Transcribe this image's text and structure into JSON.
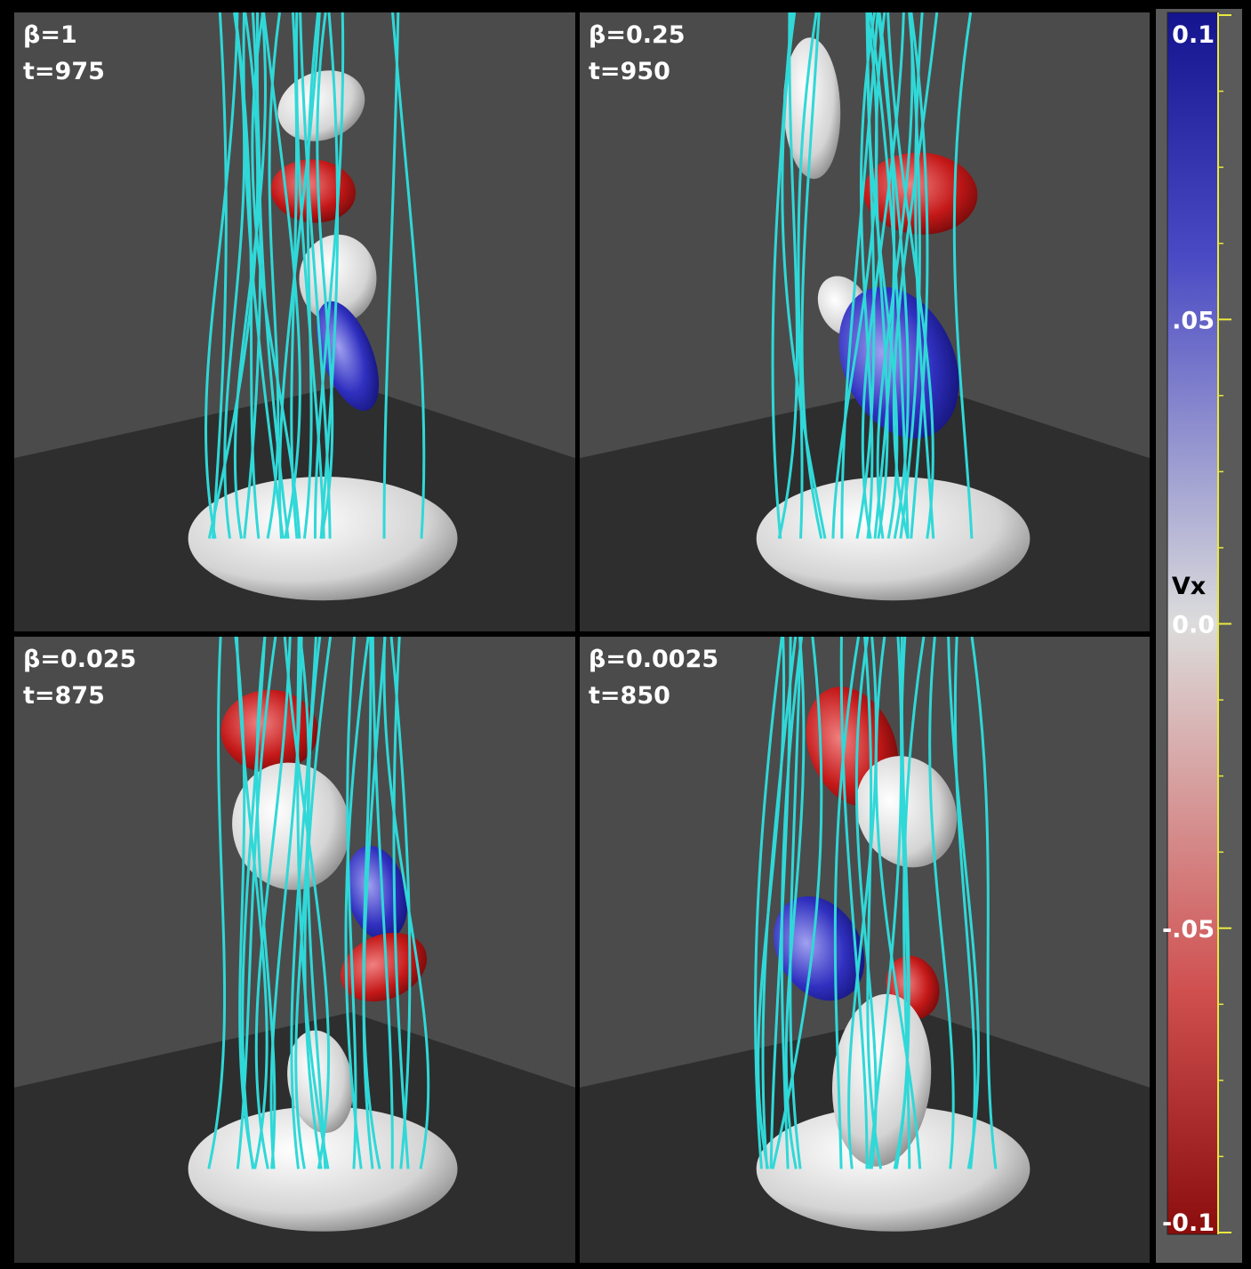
{
  "panels": [
    {
      "beta": "β=1",
      "time": "t=975"
    },
    {
      "beta": "β=0.25",
      "time": "t=950"
    },
    {
      "beta": "β=0.025",
      "time": "t=875"
    },
    {
      "beta": "β=0.0025",
      "time": "t=850"
    }
  ],
  "colorbar": {
    "label": "Vx",
    "ticks": [
      {
        "value": 0.1,
        "label": "0.1"
      },
      {
        "value": 0.05,
        "label": ".05"
      },
      {
        "value": 0.0,
        "label": "0.0"
      },
      {
        "value": -0.05,
        "label": "-.05"
      },
      {
        "value": -0.1,
        "label": "-0.1"
      }
    ]
  }
}
